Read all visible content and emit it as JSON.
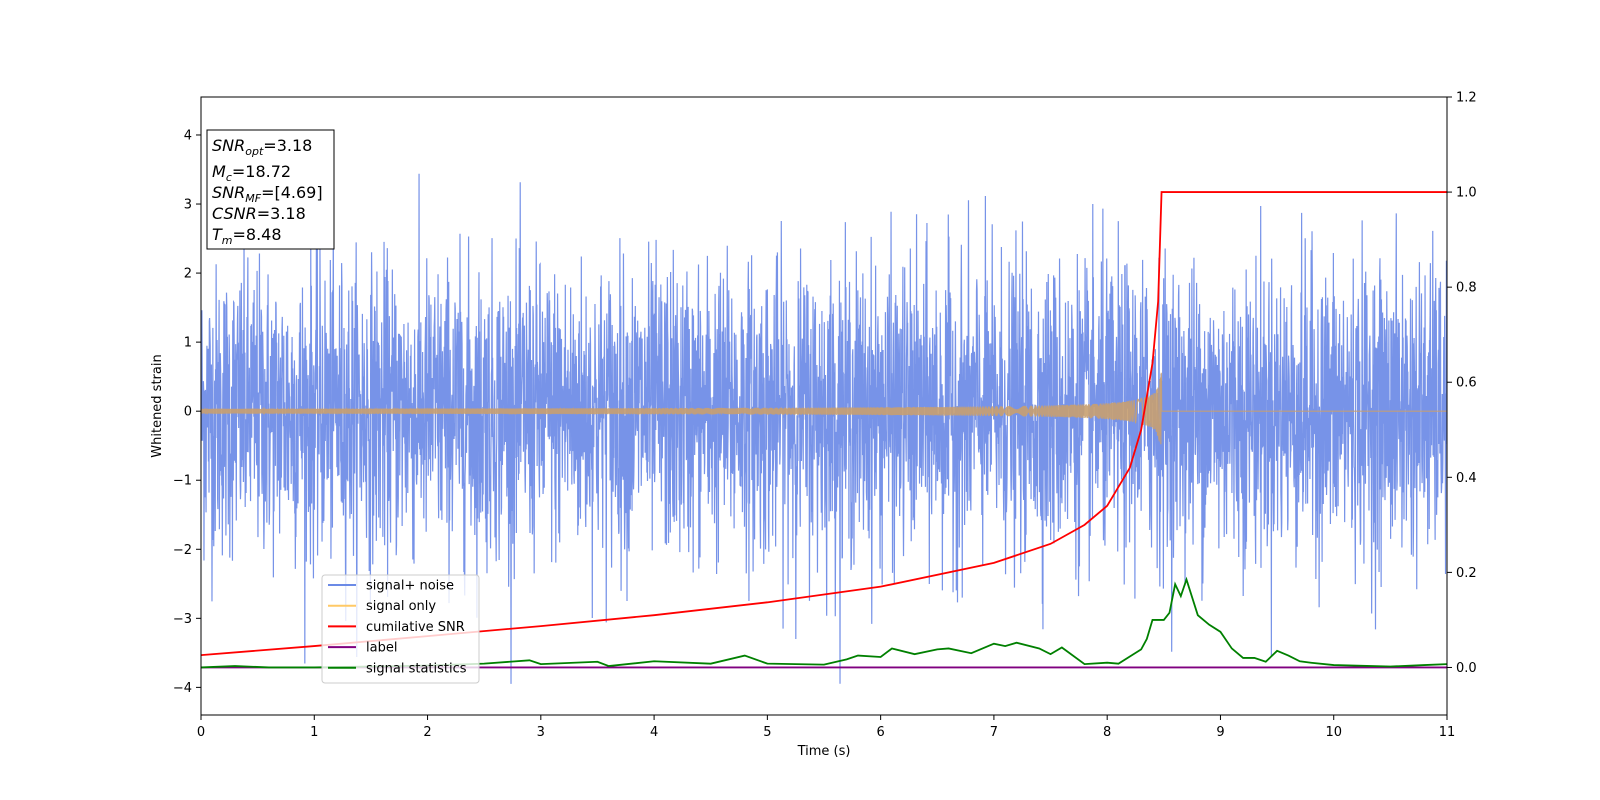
{
  "chart_data": {
    "type": "line",
    "title": "",
    "xlabel": "Time (s)",
    "ylabel": "Whitened strain",
    "xlim": [
      0,
      11
    ],
    "ylim_left": [
      -4.4,
      4.55
    ],
    "ylim_right": [
      -0.1,
      1.2
    ],
    "x_ticks": [
      "0",
      "1",
      "2",
      "3",
      "4",
      "5",
      "6",
      "7",
      "8",
      "9",
      "10",
      "11"
    ],
    "y_ticks_left": [
      "−4",
      "−3",
      "−2",
      "−1",
      "0",
      "1",
      "2",
      "3",
      "4"
    ],
    "y_ticks_right": [
      "0.0",
      "0.2",
      "0.4",
      "0.6",
      "0.8",
      "1.0",
      "1.2"
    ],
    "grid": false,
    "legend_position": "lower-left",
    "series": [
      {
        "name": "signal+ noise",
        "color": "#6b8ae6",
        "axis": "left",
        "description_kind": "noise",
        "amplitude_std": 1.05,
        "min": -3.95,
        "max": 4.18
      },
      {
        "name": "signal only",
        "color": "#ffc966",
        "axis": "left",
        "description_kind": "chirp",
        "merger_time": 8.48,
        "peak_amplitude": 0.6
      },
      {
        "name": "cumilative SNR",
        "color": "#ff0000",
        "axis": "right",
        "x": [
          0,
          1,
          2,
          3,
          4,
          5,
          6,
          7,
          7.5,
          7.8,
          8.0,
          8.2,
          8.3,
          8.4,
          8.45,
          8.48,
          8.5,
          9,
          10,
          11
        ],
        "y": [
          0.026,
          0.045,
          0.066,
          0.087,
          0.11,
          0.137,
          0.17,
          0.22,
          0.26,
          0.3,
          0.34,
          0.42,
          0.5,
          0.64,
          0.77,
          1.0,
          1.0,
          1.0,
          1.0,
          1.0
        ]
      },
      {
        "name": "label",
        "color": "#800080",
        "axis": "right",
        "x": [
          0,
          11
        ],
        "y": [
          0,
          0
        ]
      },
      {
        "name": "signal statistics",
        "color": "#008000",
        "axis": "right",
        "x": [
          0,
          0.3,
          0.6,
          1,
          1.5,
          2,
          2.5,
          2.9,
          3.0,
          3.5,
          3.6,
          4.0,
          4.5,
          4.8,
          5.0,
          5.5,
          5.7,
          5.8,
          6.0,
          6.1,
          6.3,
          6.5,
          6.6,
          6.8,
          7.0,
          7.1,
          7.2,
          7.4,
          7.5,
          7.6,
          7.8,
          8.0,
          8.1,
          8.2,
          8.3,
          8.35,
          8.4,
          8.5,
          8.55,
          8.6,
          8.65,
          8.7,
          8.8,
          8.9,
          9.0,
          9.1,
          9.2,
          9.3,
          9.4,
          9.5,
          9.6,
          9.7,
          9.8,
          10.0,
          10.5,
          10.8,
          11.0
        ],
        "y": [
          0.0,
          0.003,
          0.0,
          0.0,
          0.002,
          0.004,
          0.008,
          0.015,
          0.007,
          0.012,
          0.003,
          0.013,
          0.008,
          0.025,
          0.008,
          0.006,
          0.017,
          0.025,
          0.022,
          0.04,
          0.028,
          0.038,
          0.04,
          0.03,
          0.05,
          0.045,
          0.052,
          0.04,
          0.028,
          0.042,
          0.007,
          0.01,
          0.008,
          0.023,
          0.038,
          0.06,
          0.1,
          0.1,
          0.115,
          0.175,
          0.15,
          0.185,
          0.11,
          0.09,
          0.075,
          0.04,
          0.02,
          0.02,
          0.012,
          0.035,
          0.025,
          0.013,
          0.01,
          0.005,
          0.002,
          0.005,
          0.007
        ]
      }
    ],
    "info_box": [
      {
        "main": "SNR",
        "sub": "opt",
        "value": "=3.18"
      },
      {
        "main": "M",
        "sub": "c",
        "value": "=18.72"
      },
      {
        "main": "SNR",
        "sub": "MF",
        "value": "=[4.69]"
      },
      {
        "main": "CSNR",
        "sub": "",
        "value": "=3.18"
      },
      {
        "main": "T",
        "sub": "m",
        "value": "=8.48"
      }
    ]
  }
}
